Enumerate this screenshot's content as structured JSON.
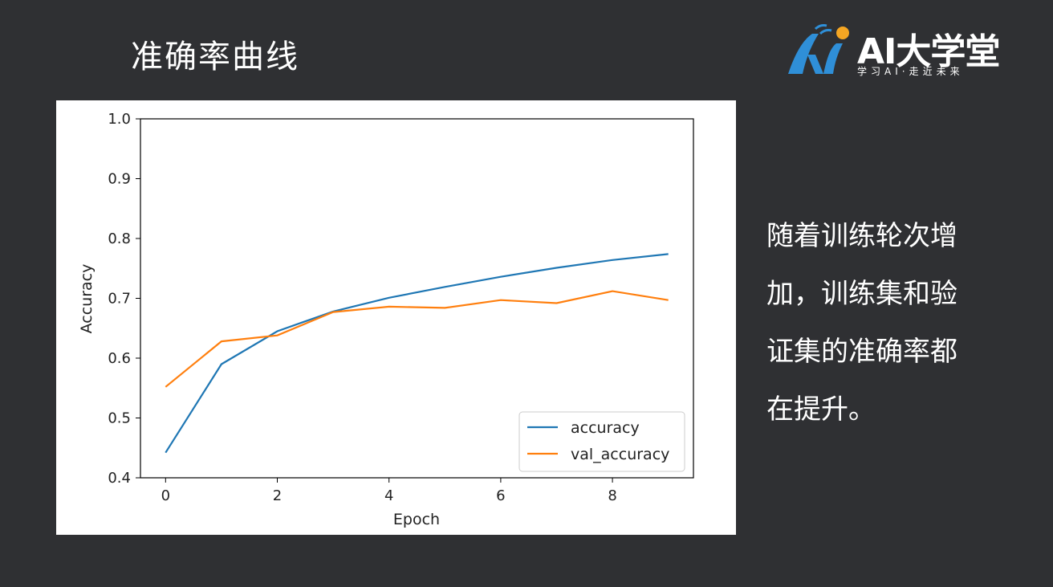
{
  "slide": {
    "title": "准确率曲线",
    "description_lines": [
      "随着训练轮次增",
      "加，训练集和验",
      "证集的准确率都",
      "在提升。"
    ]
  },
  "logo": {
    "text": "AI大学堂",
    "subtitle": "学习AI·走近未来",
    "colors": {
      "blue": "#2f8fd8",
      "orange": "#f5a623"
    }
  },
  "chart_data": {
    "type": "line",
    "x": [
      0,
      1,
      2,
      3,
      4,
      5,
      6,
      7,
      8,
      9
    ],
    "series": [
      {
        "name": "accuracy",
        "color": "#1f77b4",
        "values": [
          0.442,
          0.59,
          0.645,
          0.678,
          0.701,
          0.719,
          0.736,
          0.751,
          0.764,
          0.774
        ]
      },
      {
        "name": "val_accuracy",
        "color": "#ff7f0e",
        "values": [
          0.552,
          0.628,
          0.638,
          0.677,
          0.686,
          0.684,
          0.697,
          0.692,
          0.712,
          0.697
        ]
      }
    ],
    "xlabel": "Epoch",
    "ylabel": "Accuracy",
    "xlim": [
      -0.45,
      9.45
    ],
    "ylim": [
      0.4,
      1.0
    ],
    "xticks": [
      0,
      2,
      4,
      6,
      8
    ],
    "xtick_labels": [
      "0",
      "2",
      "4",
      "6",
      "8"
    ],
    "yticks": [
      0.4,
      0.5,
      0.6,
      0.7,
      0.8,
      0.9,
      1.0
    ],
    "ytick_labels": [
      "0.4",
      "0.5",
      "0.6",
      "0.7",
      "0.8",
      "0.9",
      "1.0"
    ],
    "grid": false,
    "legend_position": "lower-right"
  }
}
